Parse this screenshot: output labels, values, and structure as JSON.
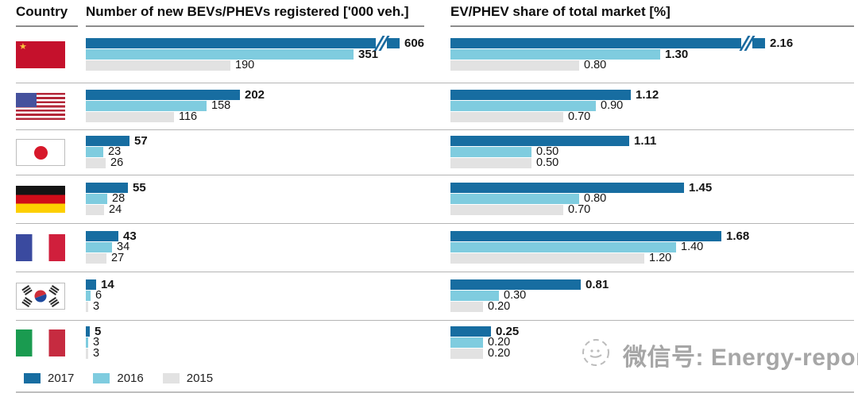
{
  "header": {
    "country_label": "Country",
    "panel1_title": "Number of new BEVs/PHEVs registered ['000 veh.]",
    "panel2_title": "EV/PHEV share of total market [%]"
  },
  "legend": {
    "items": [
      {
        "label": "2017",
        "color": "#176da1"
      },
      {
        "label": "2016",
        "color": "#7fccdf"
      },
      {
        "label": "2015",
        "color": "#e2e2e2"
      }
    ]
  },
  "countries": [
    {
      "name": "China",
      "flag": "cn"
    },
    {
      "name": "USA",
      "flag": "us"
    },
    {
      "name": "Japan",
      "flag": "jp"
    },
    {
      "name": "Germany",
      "flag": "de"
    },
    {
      "name": "France",
      "flag": "fr"
    },
    {
      "name": "South Korea",
      "flag": "kr"
    },
    {
      "name": "Italy",
      "flag": "it"
    }
  ],
  "chart_data": [
    {
      "type": "bar",
      "orientation": "horizontal",
      "title": "Number of new BEVs/PHEVs registered ['000 veh.]",
      "unit": "'000 veh.",
      "categories": [
        "China",
        "USA",
        "Japan",
        "Germany",
        "France",
        "South Korea",
        "Italy"
      ],
      "series": [
        {
          "name": "2017",
          "values": [
            606,
            202,
            57,
            55,
            43,
            14,
            5
          ]
        },
        {
          "name": "2016",
          "values": [
            351,
            158,
            23,
            28,
            34,
            6,
            3
          ]
        },
        {
          "name": "2015",
          "values": [
            190,
            116,
            26,
            24,
            27,
            3,
            3
          ]
        }
      ],
      "labels": [
        [
          "606",
          "202",
          "57",
          "55",
          "43",
          "14",
          "5"
        ],
        [
          "351",
          "158",
          "23",
          "28",
          "34",
          "6",
          "3"
        ],
        [
          "190",
          "116",
          "26",
          "24",
          "27",
          "3",
          "3"
        ]
      ],
      "axis_break": {
        "series": "2017",
        "category": "China"
      },
      "grid": false,
      "legend_position": "bottom-left"
    },
    {
      "type": "bar",
      "orientation": "horizontal",
      "title": "EV/PHEV share of total market [%]",
      "unit": "%",
      "categories": [
        "China",
        "USA",
        "Japan",
        "Germany",
        "France",
        "South Korea",
        "Italy"
      ],
      "series": [
        {
          "name": "2017",
          "values": [
            2.16,
            1.12,
            1.11,
            1.45,
            1.68,
            0.81,
            0.25
          ]
        },
        {
          "name": "2016",
          "values": [
            1.3,
            0.9,
            0.5,
            0.8,
            1.4,
            0.3,
            0.2
          ]
        },
        {
          "name": "2015",
          "values": [
            0.8,
            0.7,
            0.5,
            0.7,
            1.2,
            0.2,
            0.2
          ]
        }
      ],
      "labels": [
        [
          "2.16",
          "1.12",
          "1.11",
          "1.45",
          "1.68",
          "0.81",
          "0.25"
        ],
        [
          "1.30",
          "0.90",
          "0.50",
          "0.80",
          "1.40",
          "0.30",
          "0.20"
        ],
        [
          "0.80",
          "0.70",
          "0.50",
          "0.70",
          "1.20",
          "0.20",
          "0.20"
        ]
      ],
      "axis_break": {
        "series": "2017",
        "category": "China"
      },
      "grid": false,
      "legend_position": "bottom-left"
    }
  ],
  "watermark": {
    "icon": "wechat-logo",
    "label": "微信号: Energy-report"
  }
}
